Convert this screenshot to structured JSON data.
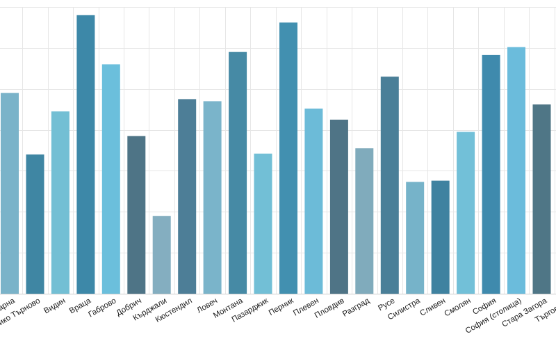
{
  "chart_data": {
    "type": "bar",
    "categories": [
      "Варна",
      "Велико Търново",
      "Видин",
      "Враца",
      "Габрово",
      "Добрич",
      "Кърджали",
      "Кюстендил",
      "Ловеч",
      "Монтана",
      "Пазарджик",
      "Перник",
      "Плевен",
      "Пловдив",
      "Разград",
      "Русе",
      "Силистра",
      "Сливен",
      "Смолян",
      "София",
      "София (столица)",
      "Стара Загора",
      "Търговище"
    ],
    "values": [
      49,
      34,
      44.5,
      68,
      56,
      38.5,
      19,
      47.5,
      47,
      59,
      34.2,
      66.2,
      45.2,
      42.5,
      35.5,
      53,
      27.3,
      27.6,
      39.5,
      58.3,
      60.2,
      46.2,
      55
    ],
    "colors": [
      "#7ab3c9",
      "#3f86a3",
      "#73bfd4",
      "#3d88a8",
      "#6bbfdc",
      "#4e7486",
      "#84aec0",
      "#4d7e97",
      "#7ab4ca",
      "#468aa5",
      "#72bfd6",
      "#4290b0",
      "#6cbbd8",
      "#4f7486",
      "#80abbc",
      "#4a7f98",
      "#76b3c9",
      "#3f82a0",
      "#72c0d8",
      "#3f8aad",
      "#6bbcdc",
      "#4f7686",
      "#83aec3"
    ],
    "ylim": [
      0,
      70
    ],
    "yticks": [
      0,
      10,
      20,
      30,
      40,
      50,
      60,
      70
    ],
    "grid": true,
    "legend": "none",
    "title": "",
    "xlabel": "",
    "ylabel": ""
  }
}
